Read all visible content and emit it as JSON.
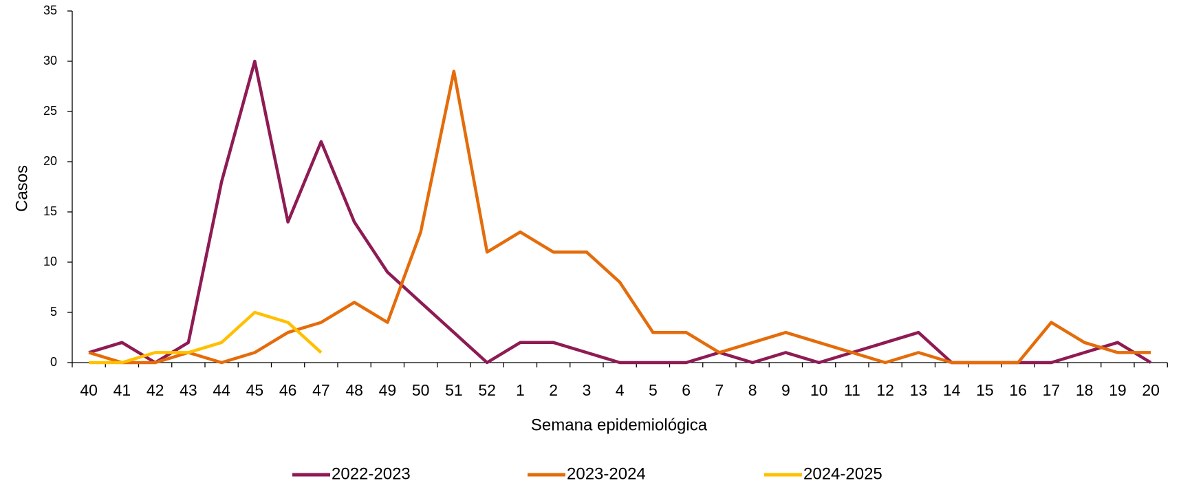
{
  "chart_data": {
    "type": "line",
    "x_label": "Semana epidemiológica",
    "y_label": "Casos",
    "categories": [
      "40",
      "41",
      "42",
      "43",
      "44",
      "45",
      "46",
      "47",
      "48",
      "49",
      "50",
      "51",
      "52",
      "1",
      "2",
      "3",
      "4",
      "5",
      "6",
      "7",
      "8",
      "9",
      "10",
      "11",
      "12",
      "13",
      "14",
      "15",
      "16",
      "17",
      "18",
      "19",
      "20"
    ],
    "series": [
      {
        "name": "2022-2023",
        "color": "#8e1b53",
        "values": [
          1,
          2,
          0,
          2,
          18,
          30,
          14,
          22,
          14,
          9,
          6,
          3,
          0,
          2,
          2,
          1,
          0,
          0,
          0,
          1,
          0,
          1,
          0,
          1,
          2,
          3,
          0,
          0,
          0,
          0,
          1,
          2,
          0
        ]
      },
      {
        "name": "2023-2024",
        "color": "#e46c0a",
        "values": [
          1,
          0,
          0,
          1,
          0,
          1,
          3,
          4,
          6,
          4,
          13,
          29,
          11,
          13,
          11,
          11,
          8,
          3,
          3,
          1,
          2,
          3,
          2,
          1,
          0,
          1,
          0,
          0,
          0,
          4,
          2,
          1,
          1
        ]
      },
      {
        "name": "2024-2025",
        "color": "#ffc000",
        "values": [
          0,
          0,
          1,
          1,
          2,
          5,
          4,
          1,
          null,
          null,
          null,
          null,
          null,
          null,
          null,
          null,
          null,
          null,
          null,
          null,
          null,
          null,
          null,
          null,
          null,
          null,
          null,
          null,
          null,
          null,
          null,
          null,
          null
        ]
      }
    ],
    "ylim": [
      0,
      35
    ],
    "yticks": [
      0,
      5,
      10,
      15,
      20,
      25,
      30,
      35
    ],
    "grid": false,
    "legend": "bottom"
  }
}
